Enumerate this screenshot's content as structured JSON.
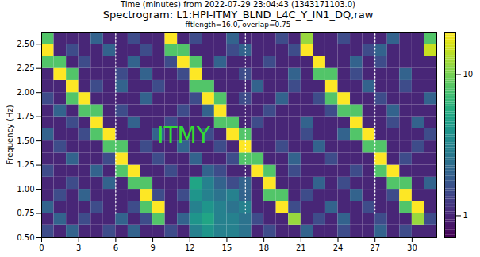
{
  "chart_data": {
    "type": "heatmap",
    "header": "Time (minutes) from 2022-07-29 23:04:43 (1343171103.0)",
    "title": "Spectrogram: L1:HPI-ITMY_BLND_L4C_Y_IN1_DQ,raw",
    "subtitle": "fftlength=16.0, overlap=0.75",
    "y_label": "Frequency (Hz)",
    "xlim": [
      0,
      32
    ],
    "ylim": [
      0.5,
      2.625
    ],
    "xticks": [
      0,
      3,
      6,
      9,
      12,
      15,
      18,
      21,
      24,
      27,
      30
    ],
    "yticks": [
      {
        "value": 0.5,
        "label": "0.50"
      },
      {
        "value": 0.75,
        "label": "0.75"
      },
      {
        "value": 1,
        "label": "1.00"
      },
      {
        "value": 1.25,
        "label": "1.25"
      },
      {
        "value": 1.5,
        "label": "1.50"
      },
      {
        "value": 1.75,
        "label": "1.75"
      },
      {
        "value": 2,
        "label": "2.00"
      },
      {
        "value": 2.25,
        "label": "2.25"
      },
      {
        "value": 2.5,
        "label": "2.50"
      }
    ],
    "color": "viridis",
    "colorbar": {
      "range": [
        0.7,
        20
      ],
      "ticks": [
        1,
        10
      ],
      "log": true
    },
    "x_edges": [
      0,
      1,
      2,
      3,
      4,
      5,
      6,
      7,
      8,
      9,
      10,
      11,
      12,
      13,
      14,
      15,
      16,
      17,
      18,
      19,
      20,
      21,
      22,
      23,
      24,
      25,
      26,
      27,
      28,
      29,
      30,
      31,
      32
    ],
    "y_edges": [
      0.5,
      0.625,
      0.75,
      0.875,
      1,
      1.125,
      1.25,
      1.375,
      1.5,
      1.625,
      1.75,
      1.875,
      2,
      2.125,
      2.25,
      2.375,
      2.5,
      2.625
    ],
    "cells": [
      [
        1.5,
        1,
        2,
        1,
        1,
        1.5,
        1,
        2,
        1,
        1,
        1.5,
        1,
        3,
        4,
        3,
        3,
        2.5,
        1,
        1.5,
        1,
        1,
        2,
        1,
        1,
        1.5,
        1,
        1,
        2,
        1,
        1.5,
        1,
        1
      ],
      [
        1,
        2,
        1,
        1.5,
        1,
        1,
        2,
        1,
        1.5,
        8,
        1,
        2,
        4,
        5,
        3,
        3,
        2.5,
        1.5,
        1,
        1,
        12,
        1,
        1.5,
        1,
        2,
        1,
        1,
        1.5,
        1,
        1,
        12,
        1.5
      ],
      [
        2,
        1,
        1,
        1,
        1.5,
        1,
        1,
        1.5,
        8,
        20,
        1,
        1,
        3,
        4,
        3,
        2.5,
        3,
        1,
        1,
        20,
        1.5,
        1,
        1,
        2,
        1,
        1,
        1.5,
        1,
        1,
        8,
        20,
        1
      ],
      [
        1,
        1.5,
        1,
        2,
        1,
        1,
        1,
        1,
        20,
        1.5,
        1,
        1.5,
        4,
        3,
        2.5,
        3,
        2,
        1,
        8,
        8,
        1,
        1.5,
        1,
        1,
        1,
        2,
        1,
        1,
        1.5,
        20,
        1,
        1
      ],
      [
        1,
        1,
        1.5,
        1,
        1,
        2,
        1,
        8,
        8,
        1,
        1,
        1,
        5,
        3,
        2,
        1.5,
        2,
        1,
        20,
        1,
        1,
        1,
        2,
        1,
        1.5,
        1,
        1,
        1,
        8,
        8,
        1,
        2
      ],
      [
        1.5,
        1,
        1,
        1,
        2,
        1,
        8,
        20,
        1,
        1,
        1.5,
        1,
        1,
        2,
        1.5,
        1,
        1,
        20,
        8,
        1,
        1.5,
        1,
        1,
        1,
        1,
        1.5,
        1,
        8,
        20,
        1,
        1,
        1
      ],
      [
        1,
        1,
        2,
        1,
        1,
        1.5,
        20,
        1,
        1,
        1.5,
        1,
        1,
        2,
        1,
        1,
        1.5,
        8,
        8,
        1,
        1,
        2,
        1,
        1,
        1.5,
        1,
        1,
        1,
        20,
        1,
        1.5,
        1,
        1
      ],
      [
        1,
        1.5,
        1,
        1,
        1,
        8,
        8,
        1,
        1.5,
        1,
        1,
        2,
        1,
        1,
        1.5,
        1,
        20,
        1,
        1,
        1.5,
        1,
        1,
        2,
        1,
        1,
        1,
        8,
        8,
        1,
        1,
        1.5,
        1
      ],
      [
        2,
        1,
        1,
        1.5,
        8,
        20,
        1,
        1,
        1,
        2,
        1,
        1,
        1,
        1.5,
        1,
        20,
        8,
        1,
        1,
        1,
        1,
        1.5,
        1,
        1,
        2,
        8,
        20,
        1,
        1,
        1,
        1,
        1.5
      ],
      [
        1,
        1,
        1.5,
        1,
        20,
        1,
        1,
        2,
        1,
        1,
        1.5,
        1,
        1,
        1,
        8,
        8,
        1,
        1.5,
        1,
        1,
        1,
        2,
        1,
        1,
        1,
        20,
        1,
        1,
        1.5,
        1,
        2,
        1
      ],
      [
        1,
        2,
        1,
        8,
        8,
        1,
        1.5,
        1,
        1,
        1,
        1,
        1.5,
        1,
        2,
        20,
        1,
        1,
        1,
        1.5,
        1,
        1,
        1,
        1,
        1.5,
        8,
        8,
        1,
        1,
        2,
        1,
        1,
        1
      ],
      [
        1.5,
        1,
        8,
        20,
        1,
        1,
        1,
        1,
        2,
        1,
        1,
        1,
        1.5,
        20,
        8,
        1,
        1.5,
        1,
        1,
        2,
        1,
        1,
        1.5,
        8,
        20,
        1,
        1,
        1.5,
        1,
        1,
        1,
        2
      ],
      [
        1,
        1,
        20,
        1,
        1.5,
        1,
        2,
        1,
        1,
        1.5,
        1,
        1,
        8,
        8,
        1,
        1,
        1,
        2,
        1,
        1,
        1.5,
        1,
        1,
        20,
        1,
        1,
        2,
        1,
        1,
        1.5,
        1,
        1
      ],
      [
        1,
        20,
        8,
        1,
        1,
        1,
        1.5,
        1,
        2,
        1,
        1,
        1.5,
        20,
        1,
        1,
        1,
        1.5,
        1,
        1,
        1,
        2,
        1,
        8,
        8,
        1,
        1.5,
        1,
        1,
        1,
        2,
        1,
        1
      ],
      [
        8,
        8,
        1,
        1.5,
        1,
        1,
        1,
        2,
        1,
        1,
        1.5,
        20,
        8,
        1,
        2,
        1,
        1,
        1,
        1.5,
        1,
        1,
        1,
        20,
        1,
        1,
        2,
        1,
        1.5,
        1,
        1,
        1,
        1
      ],
      [
        20,
        1,
        1.5,
        1,
        1,
        2,
        1,
        1,
        1.5,
        1,
        8,
        8,
        1,
        1,
        1,
        1.5,
        2,
        1,
        1,
        1,
        1.5,
        20,
        1,
        1,
        1,
        1,
        1.5,
        2,
        1,
        1,
        1,
        15
      ],
      [
        8,
        1,
        1,
        1,
        2,
        1,
        1,
        1.5,
        1,
        1,
        20,
        1,
        1.5,
        1,
        1,
        2,
        1,
        1,
        1,
        1.5,
        1,
        12,
        1,
        1,
        1.5,
        1,
        1,
        1,
        2,
        1,
        1,
        8
      ]
    ],
    "lines": [
      {
        "x": [
          0,
          29
        ],
        "y": [
          1.55,
          1.55
        ],
        "color": "#ffffff",
        "line_style": "dotted"
      },
      {
        "x": [
          6,
          6
        ],
        "y": [
          0.75,
          2.625
        ],
        "color": "#ffffff",
        "line_style": "dotted"
      },
      {
        "x": [
          16.5,
          16.5
        ],
        "y": [
          0.75,
          2.625
        ],
        "color": "#ffffff",
        "line_style": "dotted"
      },
      {
        "x": [
          27,
          27
        ],
        "y": [
          0.75,
          2.625
        ],
        "color": "#ffffff",
        "line_style": "dotted"
      }
    ],
    "annotations": [
      {
        "text": "ITMY",
        "x": 11.5,
        "y": 1.55,
        "color": "#33dd33"
      }
    ]
  }
}
